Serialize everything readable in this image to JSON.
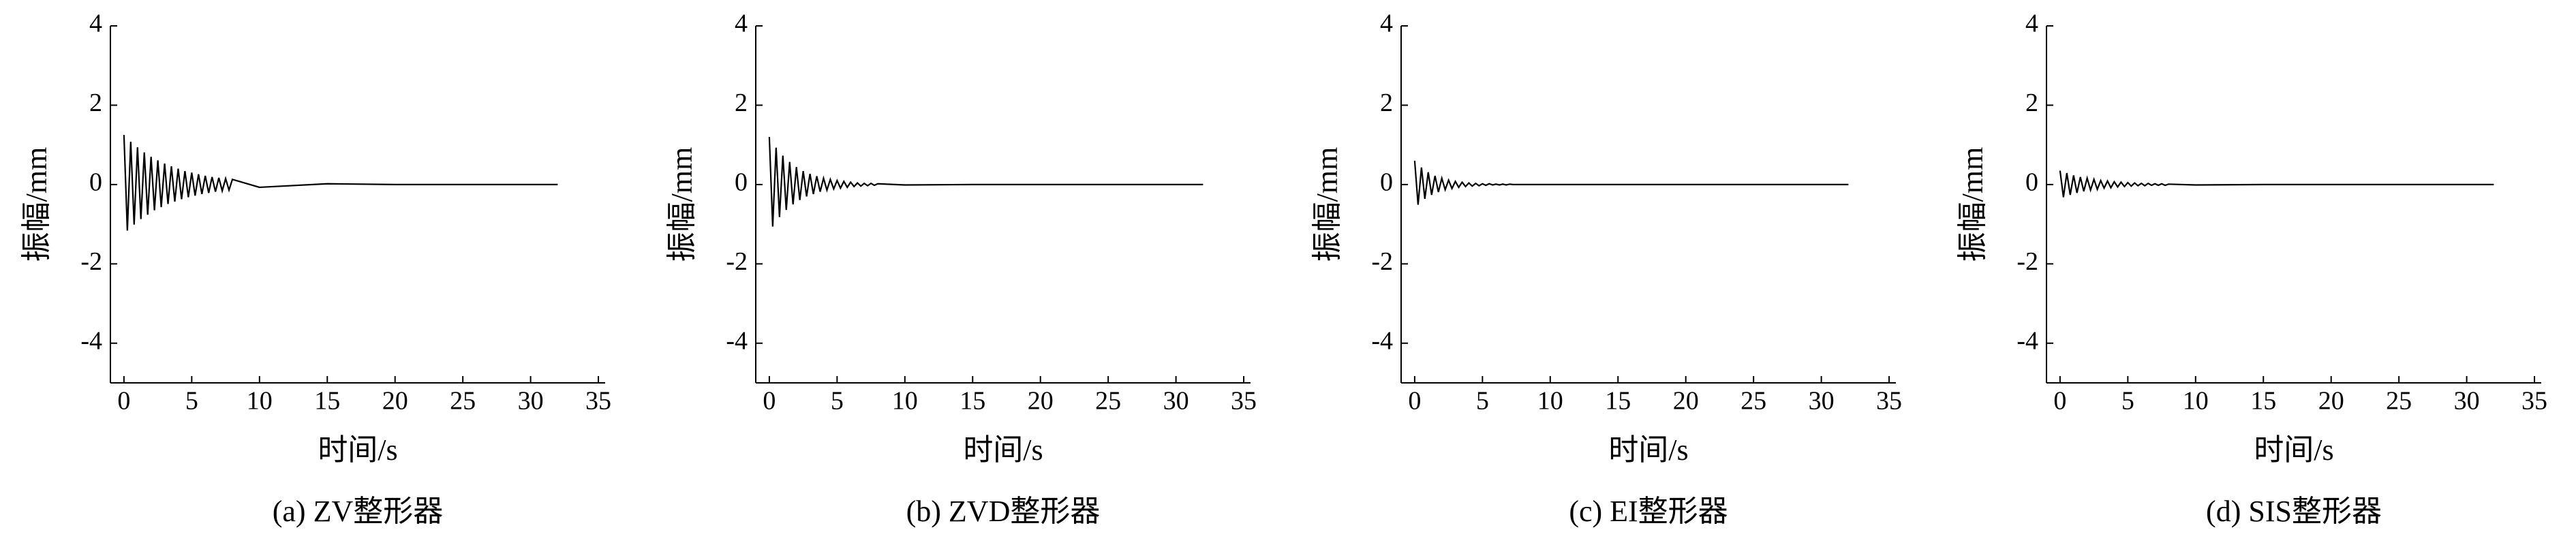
{
  "chart_data": [
    {
      "type": "line",
      "caption": "(a) ZV整形器",
      "xlabel": "时间/s",
      "ylabel": "振幅/mm",
      "color": "#000000",
      "x": [
        0,
        0.25,
        0.5,
        0.75,
        1,
        1.25,
        1.5,
        1.75,
        2,
        2.25,
        2.5,
        2.75,
        3,
        3.25,
        3.5,
        3.75,
        4,
        4.25,
        4.5,
        4.75,
        5,
        5.25,
        5.5,
        5.75,
        6,
        6.25,
        6.5,
        6.75,
        7,
        7.25,
        7.5,
        7.75,
        8,
        10,
        15,
        20,
        25,
        32
      ],
      "values": [
        1.25,
        -1.16,
        1.08,
        -1.01,
        0.94,
        -0.87,
        0.81,
        -0.76,
        0.7,
        -0.65,
        0.61,
        -0.57,
        0.53,
        -0.49,
        0.46,
        -0.43,
        0.4,
        -0.37,
        0.34,
        -0.32,
        0.3,
        -0.28,
        0.26,
        -0.24,
        0.22,
        -0.21,
        0.19,
        -0.18,
        0.17,
        -0.16,
        0.15,
        -0.14,
        0.13,
        -0.07,
        0.02,
        0,
        0,
        0
      ],
      "xlim": [
        -1,
        35.5
      ],
      "ylim": [
        -5,
        4
      ],
      "xticks": [
        0,
        5,
        10,
        15,
        20,
        25,
        30,
        35
      ],
      "yticks": [
        -4,
        -2,
        0,
        2,
        4
      ]
    },
    {
      "type": "line",
      "caption": "(b) ZVD整形器",
      "xlabel": "时间/s",
      "ylabel": "振幅/mm",
      "color": "#000000",
      "x": [
        0,
        0.25,
        0.5,
        0.75,
        1,
        1.25,
        1.5,
        1.75,
        2,
        2.25,
        2.5,
        2.75,
        3,
        3.25,
        3.5,
        3.75,
        4,
        4.25,
        4.5,
        4.75,
        5,
        5.25,
        5.5,
        5.75,
        6,
        6.25,
        6.5,
        6.75,
        7,
        7.25,
        7.5,
        7.75,
        8,
        10,
        15,
        20,
        25,
        32
      ],
      "values": [
        1.2,
        -1.06,
        0.93,
        -0.82,
        0.73,
        -0.64,
        0.57,
        -0.5,
        0.44,
        -0.39,
        0.34,
        -0.3,
        0.27,
        -0.24,
        0.21,
        -0.18,
        0.16,
        -0.14,
        0.13,
        -0.11,
        0.1,
        -0.09,
        0.08,
        -0.07,
        0.06,
        -0.05,
        0.04,
        -0.04,
        0.03,
        -0.03,
        0.03,
        -0.02,
        0.02,
        -0.01,
        0,
        0,
        0,
        0
      ],
      "xlim": [
        -1,
        35.5
      ],
      "ylim": [
        -5,
        4
      ],
      "xticks": [
        0,
        5,
        10,
        15,
        20,
        25,
        30,
        35
      ],
      "yticks": [
        -4,
        -2,
        0,
        2,
        4
      ]
    },
    {
      "type": "line",
      "caption": "(c) EI整形器",
      "xlabel": "时间/s",
      "ylabel": "振幅/mm",
      "color": "#000000",
      "x": [
        0,
        0.25,
        0.5,
        0.75,
        1,
        1.25,
        1.5,
        1.75,
        2,
        2.25,
        2.5,
        2.75,
        3,
        3.25,
        3.5,
        3.75,
        4,
        4.25,
        4.5,
        4.75,
        5,
        5.25,
        5.5,
        5.75,
        6,
        6.25,
        6.5,
        6.75,
        7,
        7.25,
        7.5,
        7.75,
        8,
        10,
        15,
        20,
        25,
        32
      ],
      "values": [
        0.6,
        -0.51,
        0.43,
        -0.36,
        0.31,
        -0.26,
        0.22,
        -0.19,
        0.16,
        -0.13,
        0.11,
        -0.1,
        0.08,
        -0.07,
        0.06,
        -0.05,
        0.04,
        -0.04,
        0.03,
        -0.03,
        0.02,
        -0.02,
        0.02,
        -0.01,
        0.01,
        -0.01,
        0.01,
        -0.01,
        0.01,
        0,
        0,
        0,
        0,
        0,
        0,
        0,
        0,
        0
      ],
      "xlim": [
        -1,
        35.5
      ],
      "ylim": [
        -5,
        4
      ],
      "xticks": [
        0,
        5,
        10,
        15,
        20,
        25,
        30,
        35
      ],
      "yticks": [
        -4,
        -2,
        0,
        2,
        4
      ]
    },
    {
      "type": "line",
      "caption": "(d) SIS整形器",
      "xlabel": "时间/s",
      "ylabel": "振幅/mm",
      "color": "#000000",
      "x": [
        0,
        0.25,
        0.5,
        0.75,
        1,
        1.25,
        1.5,
        1.75,
        2,
        2.25,
        2.5,
        2.75,
        3,
        3.25,
        3.5,
        3.75,
        4,
        4.25,
        4.5,
        4.75,
        5,
        5.25,
        5.5,
        5.75,
        6,
        6.25,
        6.5,
        6.75,
        7,
        7.25,
        7.5,
        7.75,
        8,
        10,
        15,
        20,
        25,
        32
      ],
      "values": [
        0.35,
        -0.32,
        0.29,
        -0.26,
        0.23,
        -0.21,
        0.19,
        -0.17,
        0.16,
        -0.14,
        0.13,
        -0.12,
        0.1,
        -0.09,
        0.09,
        -0.08,
        0.07,
        -0.06,
        0.06,
        -0.05,
        0.05,
        -0.04,
        0.04,
        -0.03,
        0.03,
        -0.03,
        0.03,
        -0.02,
        0.02,
        -0.02,
        0.02,
        -0.02,
        0.01,
        -0.01,
        0,
        0,
        0,
        0
      ],
      "xlim": [
        -1,
        35.5
      ],
      "ylim": [
        -5,
        4
      ],
      "xticks": [
        0,
        5,
        10,
        15,
        20,
        25,
        30,
        35
      ],
      "yticks": [
        -4,
        -2,
        0,
        2,
        4
      ]
    }
  ]
}
